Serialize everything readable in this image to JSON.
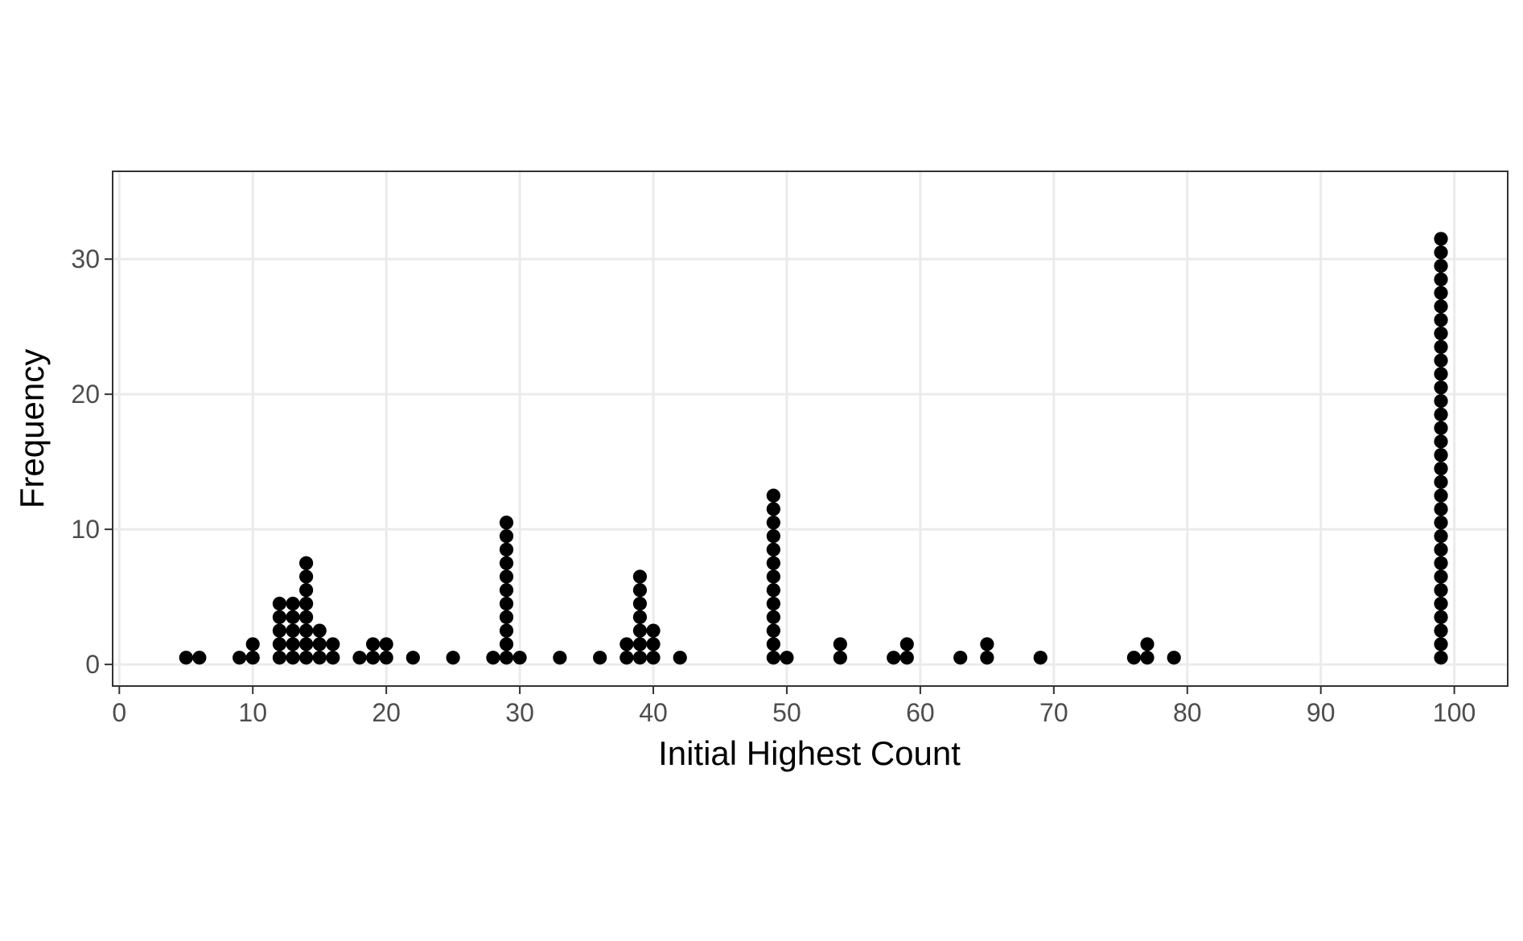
{
  "chart_data": {
    "type": "scatter",
    "subtype": "dotplot",
    "title": "",
    "xlabel": "Initial Highest Count",
    "ylabel": "Frequency",
    "xlim": [
      -0.5,
      104
    ],
    "ylim": [
      -1.6,
      36.5
    ],
    "x_ticks": [
      0,
      10,
      20,
      30,
      40,
      50,
      60,
      70,
      80,
      90,
      100
    ],
    "y_ticks": [
      0,
      10,
      20,
      30
    ],
    "grid": true,
    "legend": "none",
    "dot_color": "#000000",
    "dot_stack_step": 1,
    "dot_base": 0.5,
    "stacks": [
      {
        "x": 5,
        "count": 1
      },
      {
        "x": 6,
        "count": 1
      },
      {
        "x": 9,
        "count": 1
      },
      {
        "x": 10,
        "count": 2
      },
      {
        "x": 12,
        "count": 5
      },
      {
        "x": 13,
        "count": 5
      },
      {
        "x": 14,
        "count": 8
      },
      {
        "x": 15,
        "count": 3
      },
      {
        "x": 16,
        "count": 2
      },
      {
        "x": 18,
        "count": 1
      },
      {
        "x": 19,
        "count": 2
      },
      {
        "x": 20,
        "count": 2
      },
      {
        "x": 22,
        "count": 1
      },
      {
        "x": 25,
        "count": 1
      },
      {
        "x": 28,
        "count": 1
      },
      {
        "x": 29,
        "count": 11
      },
      {
        "x": 30,
        "count": 1
      },
      {
        "x": 33,
        "count": 1
      },
      {
        "x": 36,
        "count": 1
      },
      {
        "x": 38,
        "count": 2
      },
      {
        "x": 39,
        "count": 7
      },
      {
        "x": 40,
        "count": 3
      },
      {
        "x": 42,
        "count": 1
      },
      {
        "x": 49,
        "count": 13
      },
      {
        "x": 50,
        "count": 1
      },
      {
        "x": 54,
        "count": 2
      },
      {
        "x": 58,
        "count": 1
      },
      {
        "x": 59,
        "count": 2
      },
      {
        "x": 63,
        "count": 1
      },
      {
        "x": 65,
        "count": 2
      },
      {
        "x": 69,
        "count": 1
      },
      {
        "x": 76,
        "count": 1
      },
      {
        "x": 77,
        "count": 2
      },
      {
        "x": 79,
        "count": 1
      },
      {
        "x": 99,
        "count": 32
      }
    ]
  },
  "colors": {
    "background": "#ffffff",
    "panel_border": "#333333",
    "grid": "#ebebeb",
    "tick_label": "#4d4d4d",
    "axis_title": "#000000"
  }
}
